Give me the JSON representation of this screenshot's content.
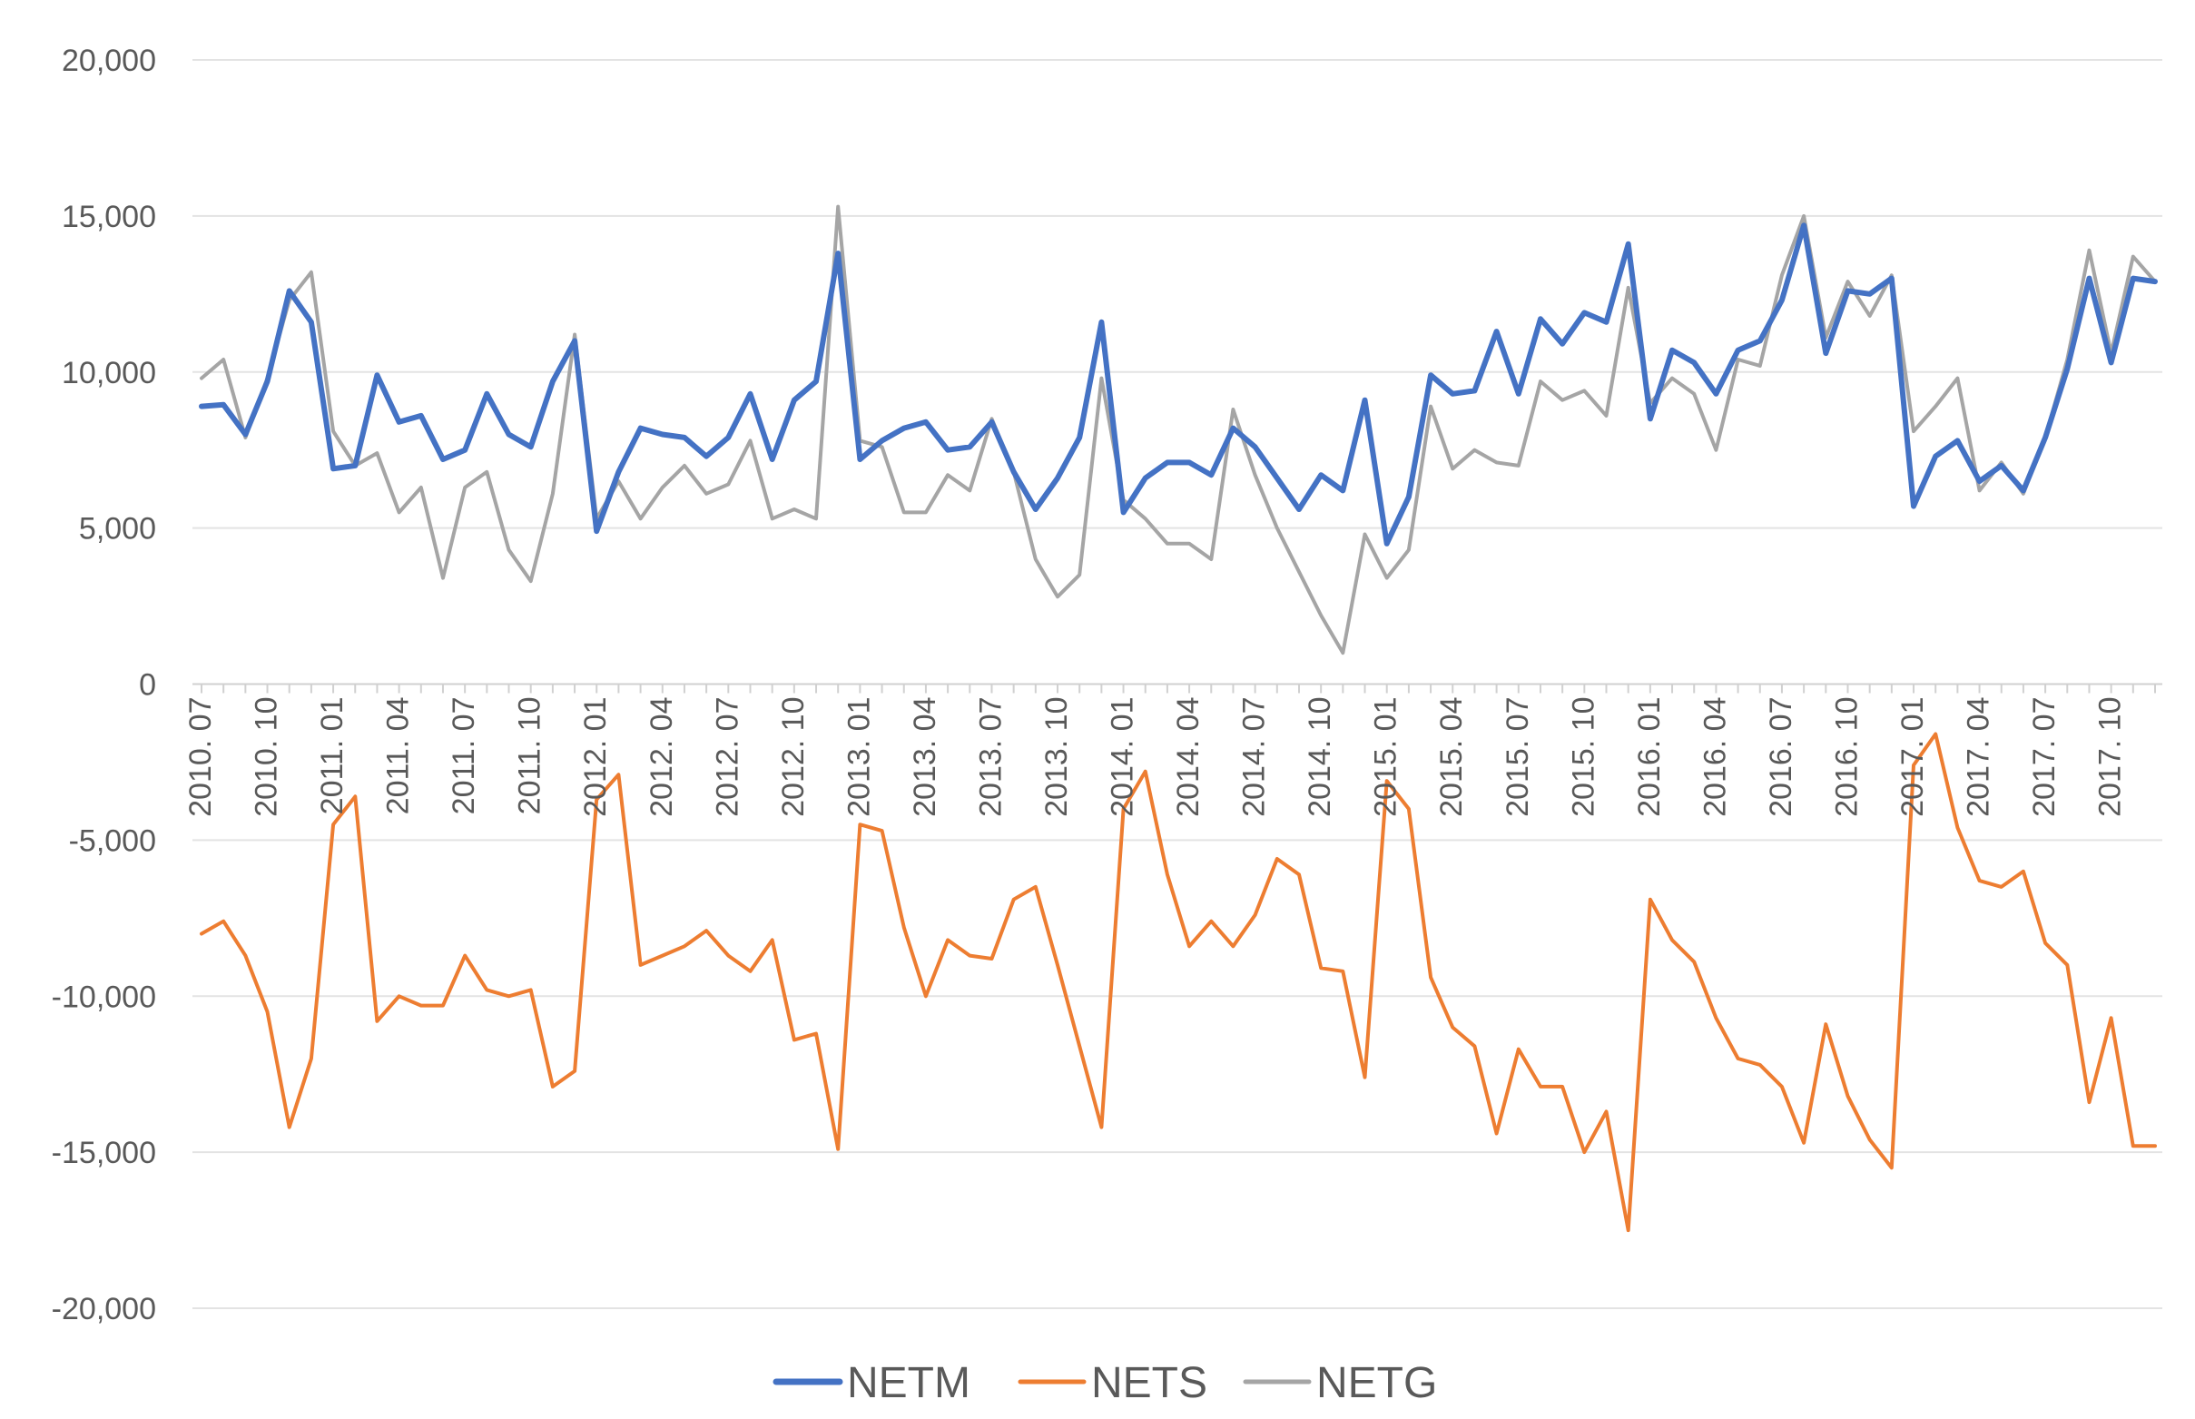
{
  "chart_data": {
    "type": "line",
    "title": "",
    "xlabel": "",
    "ylabel": "",
    "ylim": [
      -20000,
      20000
    ],
    "yticks": [
      20000,
      15000,
      10000,
      5000,
      0,
      -5000,
      -10000,
      -15000,
      -20000
    ],
    "ytick_labels": [
      "20,000",
      "15,000",
      "10,000",
      "5,000",
      "0",
      "-5,000",
      "-10,000",
      "-15,000",
      "-20,000"
    ],
    "x": [
      "2010.07",
      "2010.08",
      "2010.09",
      "2010.10",
      "2010.11",
      "2010.12",
      "2011.01",
      "2011.02",
      "2011.03",
      "2011.04",
      "2011.05",
      "2011.06",
      "2011.07",
      "2011.08",
      "2011.09",
      "2011.10",
      "2011.11",
      "2011.12",
      "2012.01",
      "2012.02",
      "2012.03",
      "2012.04",
      "2012.05",
      "2012.06",
      "2012.07",
      "2012.08",
      "2012.09",
      "2012.10",
      "2012.11",
      "2012.12",
      "2013.01",
      "2013.02",
      "2013.03",
      "2013.04",
      "2013.05",
      "2013.06",
      "2013.07",
      "2013.08",
      "2013.09",
      "2013.10",
      "2013.11",
      "2013.12",
      "2014.01",
      "2014.02",
      "2014.03",
      "2014.04",
      "2014.05",
      "2014.06",
      "2014.07",
      "2014.08",
      "2014.09",
      "2014.10",
      "2014.11",
      "2014.12",
      "2015.01",
      "2015.02",
      "2015.03",
      "2015.04",
      "2015.05",
      "2015.06",
      "2015.07",
      "2015.08",
      "2015.09",
      "2015.10",
      "2015.11",
      "2015.12",
      "2016.01",
      "2016.02",
      "2016.03",
      "2016.04",
      "2016.05",
      "2016.06",
      "2016.07",
      "2016.08",
      "2016.09",
      "2016.10",
      "2016.11",
      "2016.12",
      "2017.01",
      "2017.02",
      "2017.03",
      "2017.04",
      "2017.05",
      "2017.06",
      "2017.07",
      "2017.08",
      "2017.09",
      "2017.10",
      "2017.11",
      "2017.12"
    ],
    "xtick_labels": [
      "2010. 07",
      "2010. 10",
      "2011. 01",
      "2011. 04",
      "2011. 07",
      "2011. 10",
      "2012. 01",
      "2012. 04",
      "2012. 07",
      "2012. 10",
      "2013. 01",
      "2013. 04",
      "2013. 07",
      "2013. 10",
      "2014. 01",
      "2014. 04",
      "2014. 07",
      "2014. 10",
      "2015. 01",
      "2015. 04",
      "2015. 07",
      "2015. 10",
      "2016. 01",
      "2016. 04",
      "2016. 07",
      "2016. 10",
      "2017. 01",
      "2017. 04",
      "2017. 07",
      "2017. 10"
    ],
    "grid": true,
    "legend_position": "bottom",
    "series": [
      {
        "name": "NETM",
        "color": "#4472C4",
        "width": 6,
        "values": [
          8900,
          8950,
          8000,
          9700,
          12600,
          11600,
          6900,
          7000,
          9900,
          8400,
          8600,
          7200,
          7500,
          9300,
          8000,
          7600,
          9700,
          11000,
          4900,
          6800,
          8200,
          8000,
          7900,
          7300,
          7900,
          9300,
          7200,
          9100,
          9700,
          13800,
          7200,
          7800,
          8200,
          8400,
          7500,
          7600,
          8400,
          6800,
          5600,
          6600,
          7900,
          11600,
          5500,
          6600,
          7100,
          7100,
          6700,
          8200,
          7600,
          6600,
          5600,
          6700,
          6200,
          9100,
          4500,
          6000,
          9900,
          9300,
          9400,
          11300,
          9300,
          11700,
          10900,
          11900,
          11600,
          14100,
          8500,
          10700,
          10300,
          9300,
          10700,
          11000,
          12300,
          14700,
          10600,
          12600,
          12500,
          13000,
          5700,
          7300,
          7800,
          6500,
          7000,
          6200,
          7900,
          10100,
          13000,
          10300,
          13000,
          12900
        ]
      },
      {
        "name": "NETS",
        "color": "#ED7D31",
        "width": 4,
        "values": [
          -8000,
          -7600,
          -8700,
          -10500,
          -14200,
          -12000,
          -4500,
          -3600,
          -10800,
          -10000,
          -10300,
          -10300,
          -8700,
          -9800,
          -10000,
          -9800,
          -12900,
          -12400,
          -3700,
          -2900,
          -9000,
          -8700,
          -8400,
          -7900,
          -8700,
          -9200,
          -8200,
          -11400,
          -11200,
          -14900,
          -4500,
          -4700,
          -7800,
          -10000,
          -8200,
          -8700,
          -8800,
          -6900,
          -6500,
          -9000,
          -11600,
          -14200,
          -4000,
          -2800,
          -6100,
          -8400,
          -7600,
          -8400,
          -7400,
          -5600,
          -6100,
          -9100,
          -9200,
          -12600,
          -3100,
          -4000,
          -9400,
          -11000,
          -11600,
          -14400,
          -11700,
          -12900,
          -12900,
          -15000,
          -13700,
          -17500,
          -6900,
          -8200,
          -8900,
          -10700,
          -12000,
          -12200,
          -12900,
          -14700,
          -10900,
          -13200,
          -14600,
          -15500,
          -2600,
          -1600,
          -4600,
          -6300,
          -6500,
          -6000,
          -8300,
          -9000,
          -13400,
          -10700,
          -14800,
          -14800
        ]
      },
      {
        "name": "NETG",
        "color": "#A5A5A5",
        "width": 4,
        "values": [
          9800,
          10400,
          7900,
          9800,
          12300,
          13200,
          8100,
          7000,
          7400,
          5500,
          6300,
          3400,
          6300,
          6800,
          4300,
          3300,
          6100,
          11200,
          5300,
          6500,
          5300,
          6300,
          7000,
          6100,
          6400,
          7800,
          5300,
          5600,
          5300,
          15300,
          7800,
          7600,
          5500,
          5500,
          6700,
          6200,
          8500,
          6800,
          4000,
          2800,
          3500,
          9800,
          5900,
          5300,
          4500,
          4500,
          4000,
          8800,
          6700,
          5000,
          3600,
          2200,
          1000,
          4800,
          3400,
          4300,
          8900,
          6900,
          7500,
          7100,
          7000,
          9700,
          9100,
          9400,
          8600,
          12700,
          9000,
          9800,
          9300,
          7500,
          10400,
          10200,
          13100,
          15000,
          11100,
          12900,
          11800,
          13100,
          8100,
          8900,
          9800,
          6200,
          7100,
          6100,
          7900,
          10400,
          13900,
          10600,
          13700,
          12900
        ]
      }
    ]
  }
}
